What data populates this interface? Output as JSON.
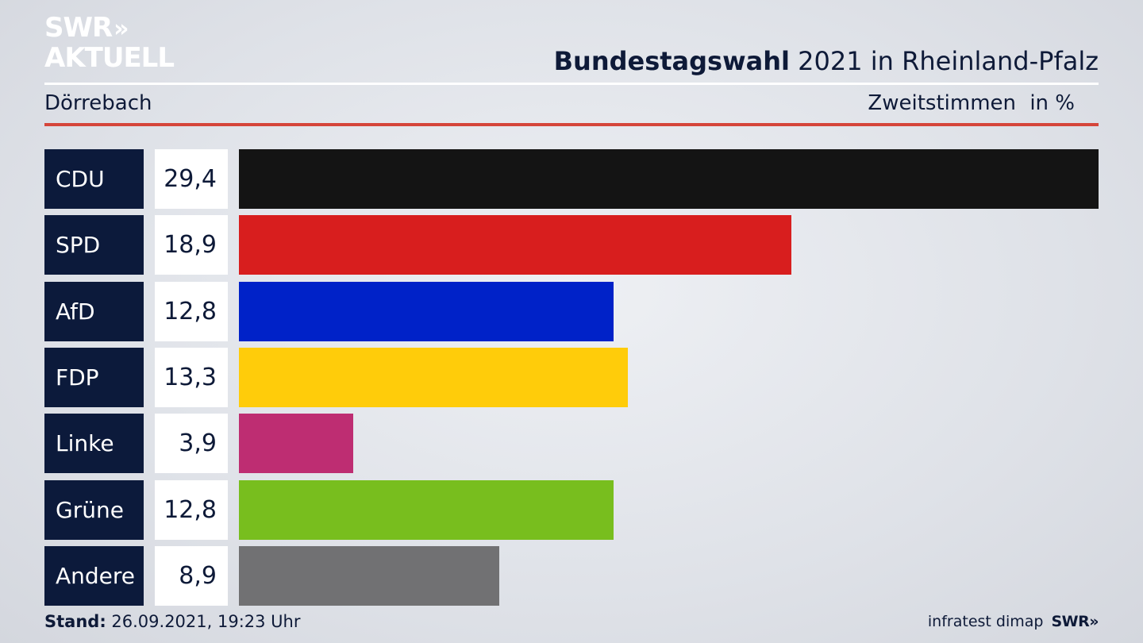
{
  "logo": {
    "line1": "SWR",
    "line2": "AKTUELL",
    "arrows": "»"
  },
  "header": {
    "title_bold": "Bundestagswahl",
    "title_rest": " 2021 in Rheinland-Pfalz",
    "location": "Dörrebach",
    "measure": "Zweitstimmen",
    "unit": "in %"
  },
  "chart_data": {
    "type": "bar",
    "orientation": "horizontal",
    "categories": [
      "CDU",
      "SPD",
      "AfD",
      "FDP",
      "Linke",
      "Grüne",
      "Andere"
    ],
    "values": [
      29.4,
      18.9,
      12.8,
      13.3,
      3.9,
      12.8,
      8.9
    ],
    "value_labels": [
      "29,4",
      "18,9",
      "12,8",
      "13,3",
      "3,9",
      "12,8",
      "8,9"
    ],
    "colors": [
      "#141414",
      "#d81e1e",
      "#0022c8",
      "#ffcc0a",
      "#be2d72",
      "#78be1e",
      "#717173"
    ],
    "xlim": [
      0,
      29.4
    ]
  },
  "footer": {
    "stand_label": "Stand:",
    "stand_value": " 26.09.2021, 19:23 Uhr",
    "source": "infratest dimap",
    "brand": "SWR»"
  }
}
